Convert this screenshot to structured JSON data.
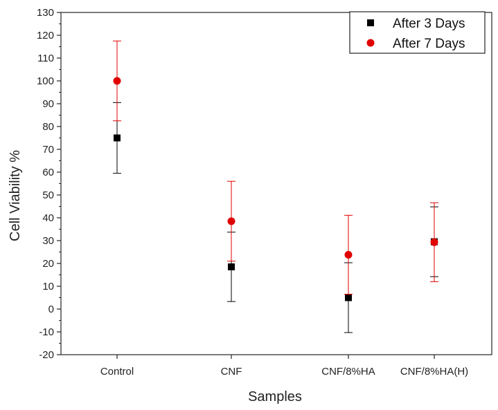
{
  "chart_data": {
    "type": "scatter",
    "title": "",
    "xlabel": "Samples",
    "ylabel": "Cell Viability %",
    "categories": [
      "Control",
      "CNF",
      "CNF/8%HA",
      "CNF/8%HA(H)"
    ],
    "ylim": [
      -20,
      130
    ],
    "yticks": [
      -20,
      -10,
      0,
      10,
      20,
      30,
      40,
      50,
      60,
      70,
      80,
      90,
      100,
      110,
      120,
      130
    ],
    "grid": false,
    "legend_position": "top-right",
    "series": [
      {
        "name": "After 3 Days",
        "marker": "square",
        "color": "#000000",
        "values": [
          75,
          18.5,
          5,
          29.5
        ],
        "errors": [
          15.5,
          15.2,
          15.3,
          15.3
        ]
      },
      {
        "name": "After 7 Days",
        "marker": "circle",
        "color": "#e00000",
        "values": [
          100,
          38.5,
          23.8,
          29.3
        ],
        "errors": [
          17.5,
          17.5,
          17.3,
          17.3
        ]
      }
    ]
  }
}
